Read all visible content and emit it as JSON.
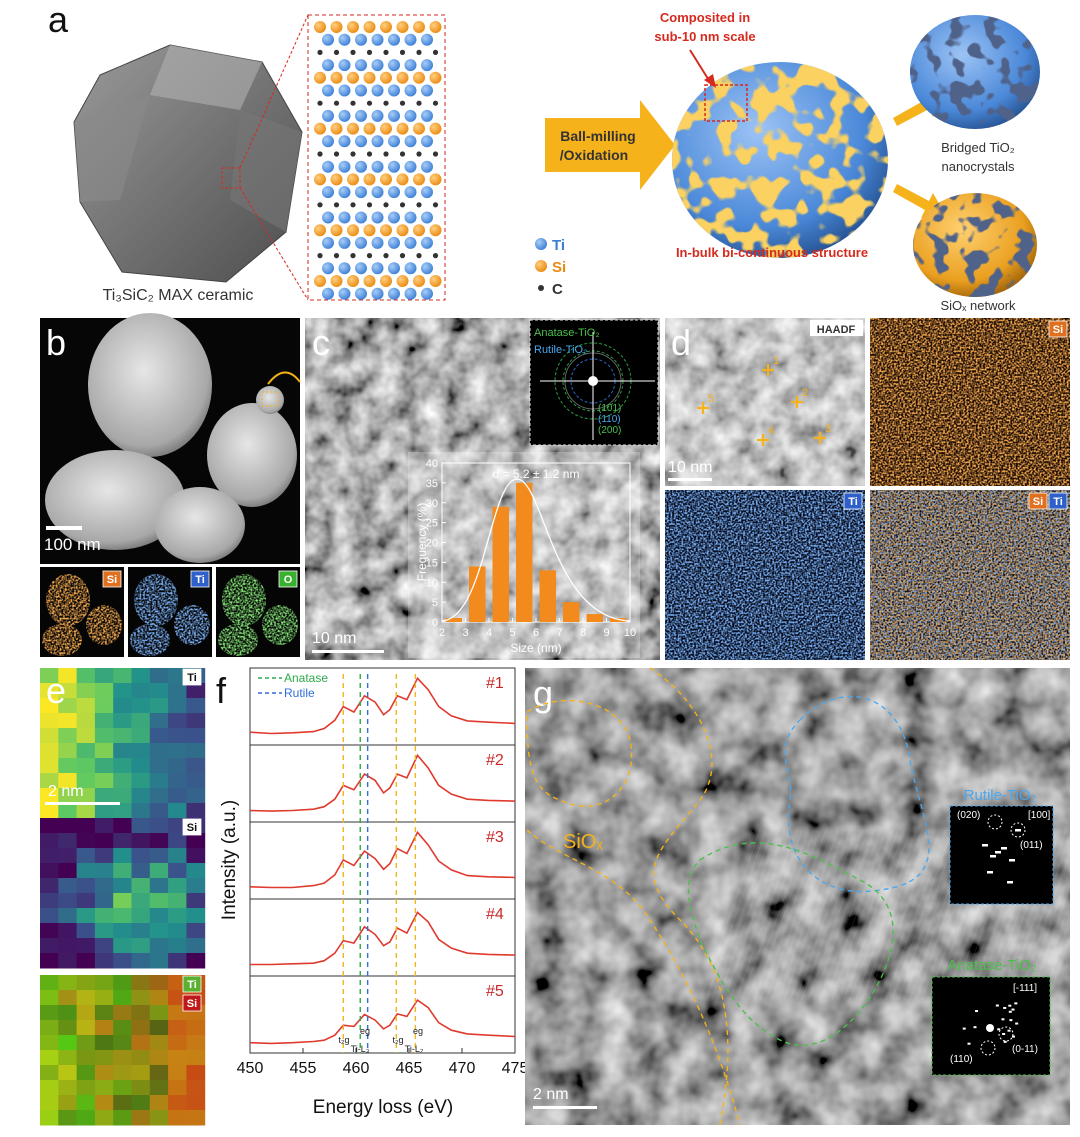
{
  "panel_a": {
    "label": "a",
    "ceramic": "Ti₃SiC₂ MAX ceramic",
    "process": [
      "Ball-milling",
      "/Oxidation"
    ],
    "scale_note": [
      "Composited in",
      "sub-10 nm scale"
    ],
    "structure": "In-bulk bi-continuous structure",
    "tio2": [
      "Bridged TiO₂",
      "nanocrystals"
    ],
    "siox": "SiOₓ network",
    "legend": [
      "Ti",
      "Si",
      "C"
    ]
  },
  "panel_b": {
    "label": "b",
    "scale_bar": "100 nm",
    "maps": [
      "Si",
      "Ti",
      "O"
    ]
  },
  "panel_c": {
    "label": "c",
    "fft_labels": [
      "Anatase-TiO₂",
      "Rutile-TiO₂"
    ],
    "rings": [
      "(101)",
      "(110)",
      "(200)"
    ],
    "scale_bar": "10 nm"
  },
  "panel_d": {
    "label": "d",
    "maps": [
      "HAADF",
      "Si",
      "Ti",
      "Si",
      "Ti"
    ],
    "points": [
      "1",
      "2",
      "3",
      "4",
      "5"
    ],
    "scale_bar": "10 nm"
  },
  "panel_e": {
    "label": "e",
    "maps": [
      "Ti",
      "Si",
      "Ti",
      "Si"
    ],
    "scale_bar": "2 nm"
  },
  "panel_f": {
    "label": "f",
    "annotations": [
      "t₂g",
      "eg",
      "Ti-L₃",
      "t₂g",
      "eg",
      "Ti-L₂"
    ]
  },
  "panel_g": {
    "label": "g",
    "siox": "SiOₓ",
    "rutile": {
      "title": "Rutile-TiO₂",
      "spots": [
        "(020)",
        "[100]",
        "(011)"
      ]
    },
    "anatase": {
      "title": "Anatase-TiO₂",
      "spots": [
        "[-111]",
        "(110)",
        "(0-11)"
      ]
    },
    "scale_bar": "2 nm"
  },
  "chart_data": [
    {
      "type": "histogram",
      "title": "d = 5.2 ± 1.2 nm",
      "bins": [
        2,
        3,
        4,
        5,
        6,
        7,
        8,
        9,
        10
      ],
      "values": [
        1,
        14,
        29,
        35,
        13,
        5,
        2,
        1
      ],
      "color": "#f28a1e",
      "xlim": [
        2,
        10
      ],
      "xticks": [
        2,
        3,
        4,
        5,
        6,
        7,
        8,
        9,
        10
      ],
      "ylim": [
        0,
        40
      ],
      "yticks": [
        0,
        5,
        10,
        15,
        20,
        25,
        30,
        35,
        40
      ],
      "xlabel": "Size (nm)",
      "ylabel": "Frequency (%)"
    },
    {
      "type": "line",
      "xlabel": "Energy loss (eV)",
      "ylabel": "Intensity (a.u.)",
      "x": [
        450,
        452,
        454,
        456,
        457,
        458,
        458.8,
        459.8,
        460.8,
        461.8,
        462.6,
        463.2,
        463.9,
        464.8,
        465.8,
        466.8,
        467.8,
        469,
        470.5,
        472.5,
        475
      ],
      "series": [
        {
          "name": "#1",
          "color": "#e03a2f",
          "values": [
            0.14,
            0.12,
            0.13,
            0.15,
            0.2,
            0.33,
            0.55,
            0.46,
            0.72,
            0.62,
            0.42,
            0.5,
            0.72,
            0.66,
            1.0,
            0.82,
            0.55,
            0.4,
            0.32,
            0.3,
            0.28
          ]
        },
        {
          "name": "#2",
          "color": "#e03a2f",
          "values": [
            0.12,
            0.11,
            0.12,
            0.14,
            0.18,
            0.3,
            0.52,
            0.45,
            0.7,
            0.6,
            0.4,
            0.48,
            0.7,
            0.64,
            1.0,
            0.8,
            0.52,
            0.38,
            0.3,
            0.28,
            0.27
          ]
        },
        {
          "name": "#3",
          "color": "#e03a2f",
          "values": [
            0.13,
            0.12,
            0.12,
            0.15,
            0.19,
            0.32,
            0.56,
            0.47,
            0.7,
            0.58,
            0.41,
            0.5,
            0.74,
            0.66,
            1.0,
            0.8,
            0.54,
            0.4,
            0.31,
            0.29,
            0.28
          ]
        },
        {
          "name": "#4",
          "color": "#e03a2f",
          "values": [
            0.12,
            0.12,
            0.13,
            0.14,
            0.18,
            0.3,
            0.5,
            0.46,
            0.72,
            0.6,
            0.42,
            0.48,
            0.7,
            0.62,
            0.95,
            0.8,
            0.52,
            0.38,
            0.3,
            0.28,
            0.27
          ]
        },
        {
          "name": "#5",
          "color": "#e03a2f",
          "values": [
            0.1,
            0.09,
            0.1,
            0.12,
            0.14,
            0.22,
            0.38,
            0.36,
            0.55,
            0.46,
            0.32,
            0.38,
            0.56,
            0.52,
            0.78,
            0.66,
            0.42,
            0.3,
            0.24,
            0.22,
            0.2
          ]
        }
      ],
      "reference_lines": [
        {
          "name": "Anatase",
          "color": "#2daa4a",
          "x": 460.4
        },
        {
          "name": "Rutile",
          "color": "#2f6fd6",
          "x": 461.1
        }
      ],
      "edge_lines": {
        "color": "#f2b61c",
        "x": [
          458.8,
          463.8,
          465.6
        ]
      },
      "xlim": [
        450,
        475
      ],
      "xticks": [
        450,
        455,
        460,
        465,
        470,
        475
      ],
      "ylim": [
        0,
        1.1
      ]
    }
  ]
}
